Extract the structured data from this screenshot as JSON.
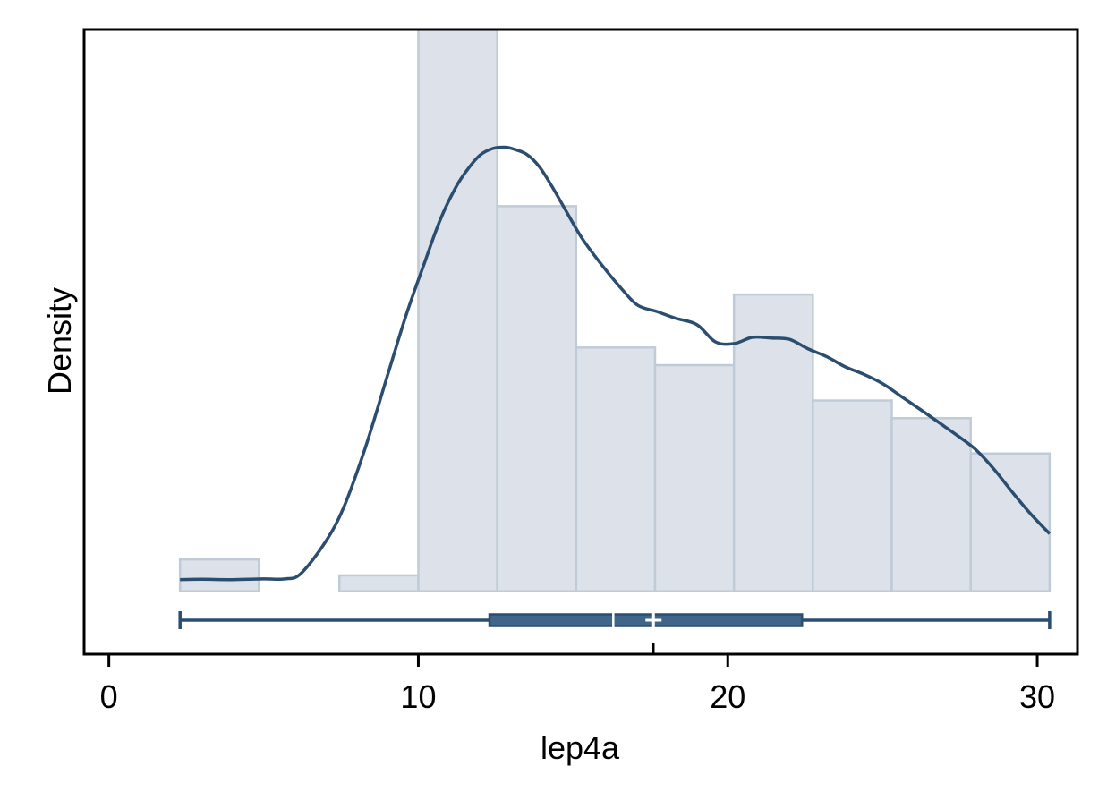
{
  "chart_data": {
    "type": "histogram",
    "xlabel": "lep4a",
    "ylabel": "Density",
    "xlim": [
      -0.8,
      31.3
    ],
    "ylim": [
      -0.0178,
      0.159
    ],
    "xticks": [
      0,
      10,
      20,
      30
    ],
    "xtick_labels": [
      "0",
      "10",
      "20",
      "30"
    ],
    "y_ticks_shown": false,
    "grid": false,
    "legend": "none",
    "bins": [
      {
        "x0": 2.3,
        "x1": 4.85,
        "density": 0.009
      },
      {
        "x0": 7.45,
        "x1": 10.0,
        "density": 0.0045
      },
      {
        "x0": 10.0,
        "x1": 12.55,
        "density": 0.159
      },
      {
        "x0": 12.55,
        "x1": 15.1,
        "density": 0.109
      },
      {
        "x0": 15.1,
        "x1": 17.65,
        "density": 0.069
      },
      {
        "x0": 17.65,
        "x1": 20.2,
        "density": 0.064
      },
      {
        "x0": 20.2,
        "x1": 22.75,
        "density": 0.084
      },
      {
        "x0": 22.75,
        "x1": 25.3,
        "density": 0.054
      },
      {
        "x0": 25.3,
        "x1": 27.85,
        "density": 0.049
      },
      {
        "x0": 27.85,
        "x1": 30.4,
        "density": 0.039
      }
    ],
    "density_curve": {
      "x": [
        2.3,
        3.0,
        4.0,
        5.0,
        5.7,
        6.2,
        7.0,
        7.6,
        8.3,
        9.0,
        9.6,
        10.2,
        10.7,
        11.2,
        11.6,
        12.0,
        12.4,
        12.8,
        13.1,
        13.5,
        13.9,
        14.3,
        14.7,
        15.3,
        16.0,
        16.6,
        17.1,
        17.7,
        18.3,
        19.0,
        19.6,
        20.2,
        20.8,
        21.4,
        22.0,
        22.6,
        23.2,
        23.8,
        24.4,
        25.0,
        25.6,
        26.2,
        26.8,
        27.4,
        28.0,
        28.6,
        29.2,
        29.8,
        30.4
      ],
      "y": [
        0.0033,
        0.0034,
        0.0033,
        0.0035,
        0.0035,
        0.005,
        0.014,
        0.024,
        0.041,
        0.061,
        0.078,
        0.093,
        0.105,
        0.1142,
        0.1195,
        0.1235,
        0.1253,
        0.1257,
        0.1251,
        0.1237,
        0.1203,
        0.1149,
        0.1088,
        0.0998,
        0.0916,
        0.0853,
        0.0809,
        0.0792,
        0.0773,
        0.0755,
        0.0706,
        0.0701,
        0.0719,
        0.0717,
        0.0713,
        0.0686,
        0.0664,
        0.0635,
        0.0614,
        0.0588,
        0.0552,
        0.0516,
        0.0479,
        0.0442,
        0.0402,
        0.0346,
        0.028,
        0.0218,
        0.0163
      ]
    },
    "boxplot": {
      "min": 2.3,
      "q1": 12.3,
      "median": 16.3,
      "mean": 17.6,
      "q3": 22.4,
      "max": 30.4
    },
    "colors": {
      "bar_fill": "#dde2ea",
      "bar_stroke": "#c0cbd7",
      "line": "#2b4d6f",
      "box_fill": "#3f6589",
      "box_stroke": "#2b4d6f",
      "axis": "#000000"
    }
  }
}
